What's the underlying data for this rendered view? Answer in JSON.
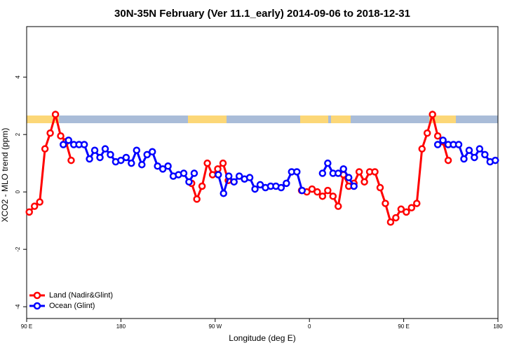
{
  "chart_data": {
    "type": "line",
    "title": "30N-35N February (Ver 11.1_early)   2014-09-06 to 2018-12-31",
    "x_label": "Longitude (deg E)",
    "y_label": "XCO2 - MLO trend (ppm)",
    "xlim": [
      90,
      540
    ],
    "xticks": [
      {
        "value": 90,
        "label": "90 E"
      },
      180,
      {
        "value": 270,
        "label": "90 W"
      },
      {
        "value": 360,
        "label": "0"
      },
      {
        "value": 450,
        "label": "90 E"
      },
      {
        "value": 540,
        "label": "180"
      }
    ],
    "ylim": [
      -4.41,
      5.76
    ],
    "yticks": [
      -4,
      -2,
      0,
      2,
      4
    ],
    "legend": "bottom-left",
    "series": [
      {
        "name": "Land (Nadir&Glint)",
        "color": "#ff0000",
        "x": [
          92.5,
          97.5,
          102.5,
          107.5,
          112.5,
          117.5,
          122.5,
          127.5,
          132.5,
          null,
          247.5,
          252.5,
          257.5,
          262.5,
          267.5,
          272.5,
          277.5,
          282.5,
          null,
          352.5,
          357.5,
          362.5,
          367.5,
          372.5,
          377.5,
          382.5,
          387.5,
          392.5,
          397.5,
          402.5,
          407.5,
          412.5,
          417.5,
          422.5,
          427.5,
          432.5,
          437.5,
          442.5,
          447.5,
          452.5,
          457.5,
          462.5,
          467.5,
          472.5,
          477.5,
          482.5,
          487.5,
          492.5
        ],
        "values": [
          -0.7,
          -0.5,
          -0.35,
          1.5,
          2.05,
          2.7,
          1.95,
          1.75,
          1.1,
          null,
          0.3,
          -0.25,
          0.2,
          1.0,
          0.6,
          0.8,
          1.0,
          0.4,
          null,
          0.05,
          0.0,
          0.1,
          0.0,
          -0.15,
          0.05,
          -0.15,
          -0.5,
          0.6,
          0.2,
          0.3,
          0.7,
          0.35,
          0.7,
          0.7,
          0.15,
          -0.4,
          -1.05,
          -0.9,
          -0.6,
          -0.7,
          -0.55,
          -0.4,
          1.5,
          2.05,
          2.7,
          1.95,
          1.75,
          1.1
        ]
      },
      {
        "name": "Ocean (Glint)",
        "color": "#0000ff",
        "x": [
          125,
          130,
          135,
          140,
          145,
          150,
          155,
          160,
          165,
          170,
          175,
          180,
          185,
          190,
          195,
          200,
          205,
          210,
          215,
          220,
          225,
          230,
          235,
          240,
          245,
          250,
          null,
          273,
          278,
          283,
          288,
          293,
          298,
          303,
          308,
          313,
          318,
          323,
          328,
          333,
          338,
          343,
          348,
          353,
          null,
          372.5,
          377.5,
          382.5,
          387.5,
          392.5,
          397.5,
          402.5,
          null,
          482.5,
          487.5,
          492.5,
          497.5,
          502.5,
          507.5,
          512.5,
          517.5,
          522.5,
          527.5,
          532.5,
          537.5
        ],
        "values": [
          1.65,
          1.8,
          1.65,
          1.65,
          1.65,
          1.15,
          1.45,
          1.2,
          1.5,
          1.3,
          1.05,
          1.1,
          1.2,
          1.0,
          1.45,
          0.95,
          1.3,
          1.4,
          0.9,
          0.8,
          0.9,
          0.55,
          0.6,
          0.65,
          0.35,
          0.65,
          null,
          0.6,
          -0.05,
          0.55,
          0.35,
          0.55,
          0.45,
          0.5,
          0.1,
          0.25,
          0.15,
          0.2,
          0.2,
          0.15,
          0.3,
          0.7,
          0.7,
          0.05,
          null,
          0.65,
          1.0,
          0.65,
          0.65,
          0.8,
          0.5,
          0.2,
          null,
          1.65,
          1.8,
          1.65,
          1.65,
          1.65,
          1.15,
          1.45,
          1.2,
          1.5,
          1.3,
          1.05,
          1.1
        ]
      }
    ]
  }
}
